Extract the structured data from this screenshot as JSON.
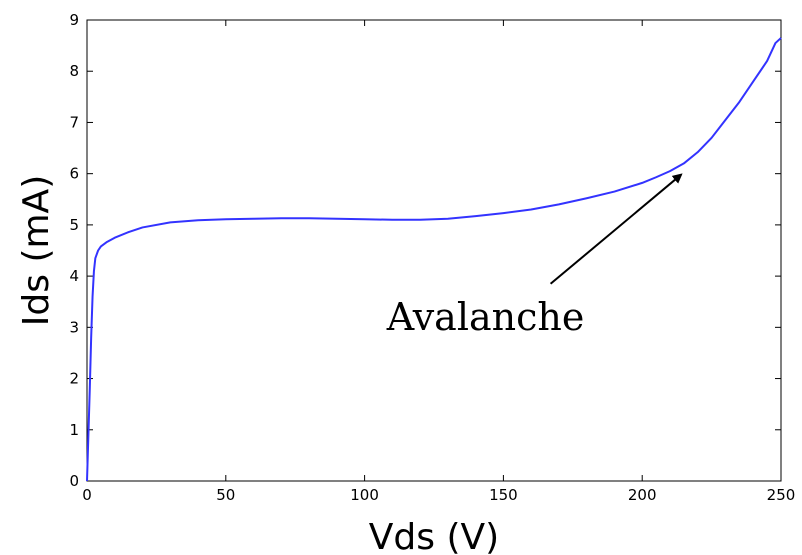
{
  "chart_data": {
    "type": "line",
    "title": "",
    "xlabel": "Vds (V)",
    "ylabel": "Ids (mA)",
    "xlim": [
      0,
      250
    ],
    "ylim": [
      0,
      9
    ],
    "xticks": [
      0,
      50,
      100,
      150,
      200,
      250
    ],
    "yticks": [
      0,
      1,
      2,
      3,
      4,
      5,
      6,
      7,
      8,
      9
    ],
    "grid": false,
    "series": [
      {
        "color": "#3333ff",
        "points": [
          [
            0,
            0.0
          ],
          [
            0.5,
            0.9
          ],
          [
            1,
            1.8
          ],
          [
            1.5,
            2.8
          ],
          [
            2,
            3.6
          ],
          [
            2.5,
            4.1
          ],
          [
            3,
            4.35
          ],
          [
            4,
            4.5
          ],
          [
            5,
            4.58
          ],
          [
            7,
            4.66
          ],
          [
            10,
            4.75
          ],
          [
            15,
            4.86
          ],
          [
            20,
            4.95
          ],
          [
            30,
            5.05
          ],
          [
            40,
            5.09
          ],
          [
            50,
            5.11
          ],
          [
            60,
            5.12
          ],
          [
            70,
            5.13
          ],
          [
            80,
            5.13
          ],
          [
            90,
            5.12
          ],
          [
            100,
            5.11
          ],
          [
            110,
            5.1
          ],
          [
            120,
            5.1
          ],
          [
            130,
            5.12
          ],
          [
            140,
            5.17
          ],
          [
            150,
            5.23
          ],
          [
            160,
            5.3
          ],
          [
            170,
            5.4
          ],
          [
            180,
            5.52
          ],
          [
            190,
            5.65
          ],
          [
            200,
            5.82
          ],
          [
            205,
            5.93
          ],
          [
            210,
            6.05
          ],
          [
            215,
            6.2
          ],
          [
            220,
            6.42
          ],
          [
            225,
            6.7
          ],
          [
            230,
            7.05
          ],
          [
            235,
            7.4
          ],
          [
            240,
            7.8
          ],
          [
            245,
            8.2
          ],
          [
            248,
            8.55
          ],
          [
            250,
            8.65
          ]
        ]
      }
    ],
    "annotations": [
      {
        "text": "Avalanche",
        "text_at": [
          108,
          3.2
        ],
        "arrow_from": [
          167,
          3.85
        ],
        "arrow_to": [
          214,
          5.98
        ]
      }
    ]
  }
}
